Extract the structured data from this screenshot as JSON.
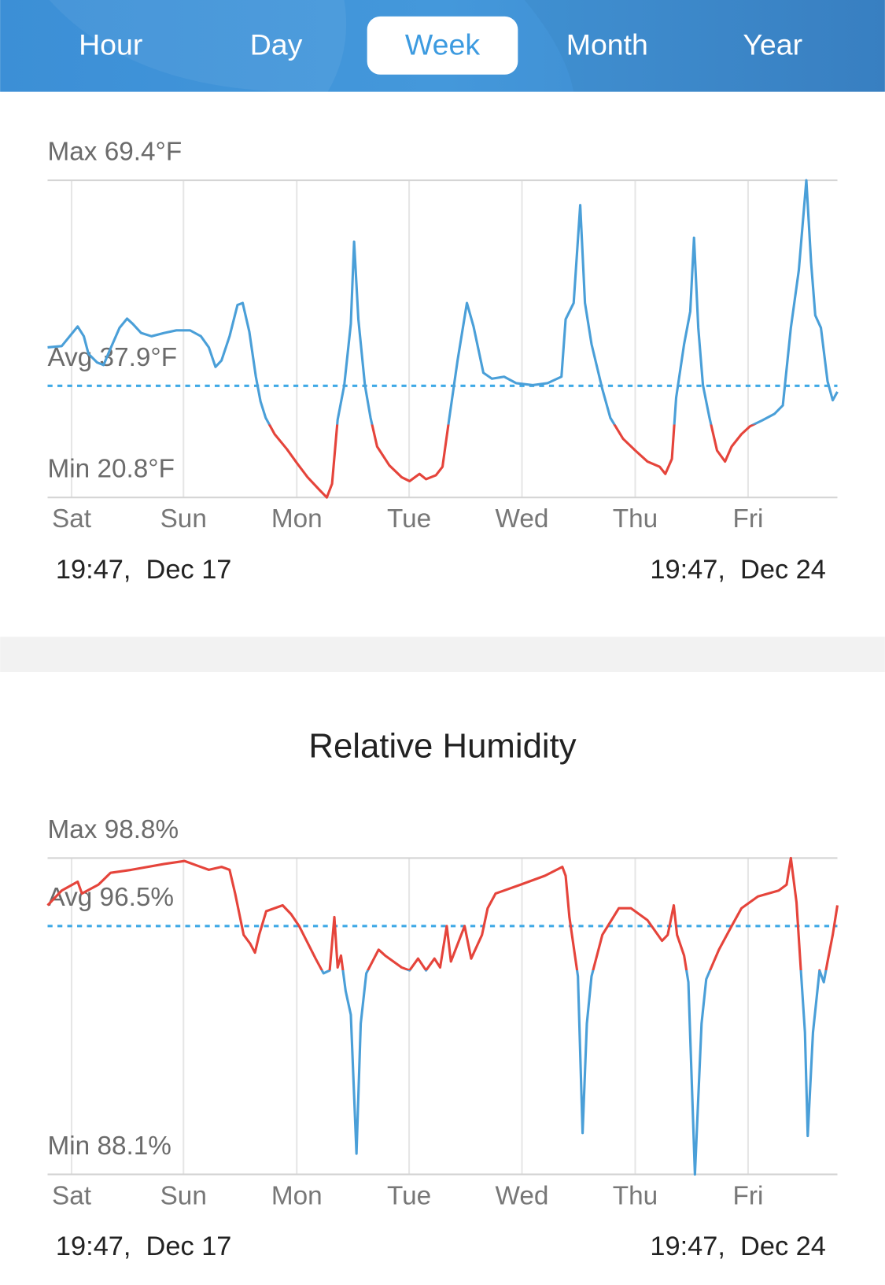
{
  "tabs": [
    "Hour",
    "Day",
    "Week",
    "Month",
    "Year"
  ],
  "selected_tab": 2,
  "chart_data": [
    {
      "type": "line",
      "x": [
        0,
        3.0,
        6.4,
        7.7,
        8.7,
        10.5,
        11.9,
        13.2,
        15.3,
        16.9,
        18.1,
        19.9,
        22.1,
        24.8,
        27.4,
        30.3,
        32.6,
        34.3,
        35.7,
        37.0,
        38.7,
        40.4,
        41.5,
        42.9,
        44.3,
        45.3,
        46.4,
        48.3,
        50.9,
        53.0,
        55.3,
        57.9,
        59.4,
        60.5,
        61.7,
        63.1,
        64.5,
        65.2,
        66.1,
        67.5,
        68.7,
        70.1,
        72.7,
        75.3,
        77.0,
        79.1,
        80.5,
        82.6,
        84.0,
        85.4,
        87.2,
        89.2,
        90.6,
        92.7,
        94.5,
        97.1,
        99.7,
        103.2,
        106.3,
        109.3,
        110.2,
        111.9,
        113.3,
        114.3,
        115.7,
        118.0,
        119.7,
        122.4,
        125.0,
        127.6,
        130.2,
        131.4,
        132.8,
        133.7,
        135.4,
        136.7,
        137.5,
        138.4,
        139.4,
        140.8,
        142.4,
        144.1,
        145.5,
        147.6,
        149.4,
        152.0,
        154.6,
        156.4,
        158.1,
        159.8,
        161.4,
        162.4,
        163.3,
        164.5,
        165.9,
        167.0,
        168
      ],
      "values": [
        43.8,
        44.0,
        47.0,
        45.5,
        42.8,
        41.5,
        41.1,
        43.3,
        46.8,
        48.2,
        47.4,
        46.0,
        45.5,
        46.0,
        46.4,
        46.4,
        45.5,
        43.8,
        40.8,
        41.8,
        45.5,
        50.3,
        50.6,
        46.2,
        39.3,
        35.5,
        33.0,
        30.5,
        28.2,
        26.1,
        23.9,
        21.9,
        20.8,
        22.9,
        32.7,
        38.0,
        47.4,
        60.0,
        48.1,
        38.0,
        33.0,
        28.6,
        25.7,
        23.9,
        23.3,
        24.4,
        23.6,
        24.2,
        25.5,
        32.7,
        41.8,
        50.6,
        47.0,
        39.9,
        39.0,
        39.3,
        38.3,
        38.0,
        38.3,
        39.3,
        48.1,
        50.6,
        65.6,
        50.6,
        44.3,
        37.4,
        33.0,
        29.8,
        28.0,
        26.3,
        25.5,
        24.4,
        26.7,
        36.1,
        44.3,
        49.3,
        60.6,
        46.8,
        38.0,
        33.0,
        28.0,
        26.3,
        28.6,
        30.5,
        31.7,
        32.6,
        33.6,
        34.9,
        46.8,
        55.6,
        69.4,
        56.8,
        48.7,
        46.8,
        38.6,
        35.7,
        37.0
      ],
      "xlim": [
        0,
        168
      ],
      "xticks": [
        {
          "value": 5.1,
          "label": "Sat"
        },
        {
          "value": 28.9,
          "label": "Sun"
        },
        {
          "value": 53.0,
          "label": "Mon"
        },
        {
          "value": 76.9,
          "label": "Tue"
        },
        {
          "value": 100.9,
          "label": "Wed"
        },
        {
          "value": 125.0,
          "label": "Thu"
        },
        {
          "value": 149.0,
          "label": "Fri"
        }
      ],
      "ylim": [
        20.8,
        69.4
      ],
      "yticks": [
        {
          "value": 69.4,
          "label": "Max 69.4°F"
        },
        {
          "value": 37.9,
          "label": "Avg 37.9°F"
        },
        {
          "value": 20.8,
          "label": "Min 20.8°F"
        }
      ],
      "threshold": 32,
      "colors": {
        "above": "#4a9fd8",
        "below": "#e5443b"
      },
      "avg_color": "#3fa9e6",
      "range_start": "19:47,  Dec 17",
      "range_end": "19:47,  Dec 24"
    },
    {
      "type": "line",
      "title": "Relative Humidity",
      "x": [
        0,
        3.0,
        6.4,
        7.3,
        10.8,
        13.4,
        17.8,
        24.8,
        29.1,
        34.3,
        37.0,
        38.7,
        39.9,
        41.7,
        43.1,
        44.1,
        45.0,
        46.5,
        50.0,
        51.8,
        53.5,
        57.0,
        58.7,
        60.0,
        61.0,
        61.7,
        62.4,
        63.4,
        64.5,
        65.7,
        66.6,
        67.8,
        70.4,
        71.8,
        75.3,
        77.0,
        78.8,
        80.5,
        82.3,
        83.5,
        84.9,
        85.8,
        88.7,
        90.1,
        92.4,
        93.6,
        95.3,
        100.6,
        105.8,
        109.5,
        110.2,
        111.0,
        112.8,
        113.8,
        114.7,
        115.7,
        118.0,
        121.5,
        124.1,
        127.6,
        130.7,
        131.9,
        133.2,
        133.9,
        135.4,
        136.3,
        137.7,
        139.1,
        140.1,
        142.8,
        145.5,
        147.6,
        151.1,
        155.5,
        157.2,
        158.1,
        159.3,
        160.2,
        161.1,
        161.7,
        162.8,
        164.2,
        165.1,
        165.9,
        167.0,
        168
      ],
      "values": [
        97.2,
        97.7,
        98.0,
        97.6,
        97.9,
        98.3,
        98.4,
        98.6,
        98.7,
        98.4,
        98.5,
        98.4,
        97.6,
        96.2,
        95.9,
        95.6,
        96.2,
        97.0,
        97.2,
        96.9,
        96.5,
        95.4,
        94.9,
        95.0,
        96.8,
        95.1,
        95.5,
        94.3,
        93.5,
        88.8,
        93.2,
        94.9,
        95.7,
        95.5,
        95.1,
        95.0,
        95.4,
        95.0,
        95.4,
        95.1,
        96.5,
        95.3,
        96.5,
        95.4,
        96.2,
        97.1,
        97.6,
        97.9,
        98.2,
        98.5,
        98.2,
        96.8,
        94.8,
        89.5,
        93.2,
        94.8,
        96.2,
        97.1,
        97.1,
        96.7,
        96.0,
        96.2,
        97.2,
        96.2,
        95.5,
        94.6,
        88.1,
        93.2,
        94.7,
        95.7,
        96.5,
        97.1,
        97.5,
        97.7,
        97.9,
        98.8,
        97.3,
        95.1,
        92.9,
        89.4,
        92.9,
        95.0,
        94.6,
        95.3,
        96.2,
        97.2
      ],
      "xlim": [
        0,
        168
      ],
      "xticks": [
        {
          "value": 5.1,
          "label": "Sat"
        },
        {
          "value": 28.9,
          "label": "Sun"
        },
        {
          "value": 53.0,
          "label": "Mon"
        },
        {
          "value": 76.9,
          "label": "Tue"
        },
        {
          "value": 100.9,
          "label": "Wed"
        },
        {
          "value": 125.0,
          "label": "Thu"
        },
        {
          "value": 149.0,
          "label": "Fri"
        }
      ],
      "ylim": [
        88.1,
        98.8
      ],
      "yticks": [
        {
          "value": 98.8,
          "label": "Max 98.8%"
        },
        {
          "value": 96.5,
          "label": "Avg 96.5%"
        },
        {
          "value": 88.1,
          "label": "Min 88.1%"
        }
      ],
      "threshold": 95,
      "colors": {
        "above": "#e5443b",
        "below": "#4a9fd8"
      },
      "avg_color": "#3fa9e6",
      "range_start": "19:47,  Dec 17",
      "range_end": "19:47,  Dec 24"
    }
  ]
}
